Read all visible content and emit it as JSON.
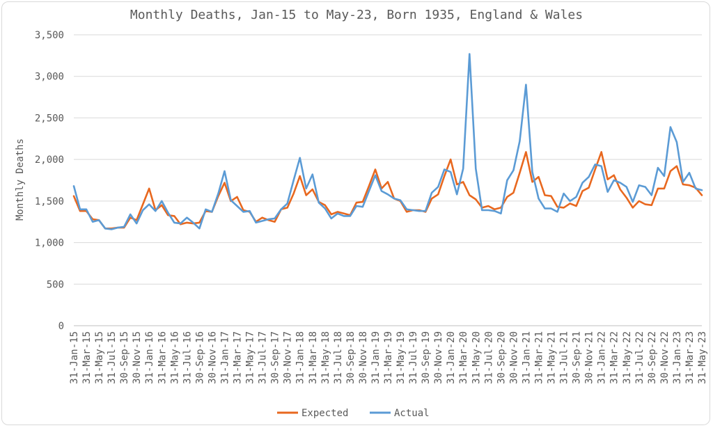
{
  "chart_data": {
    "type": "line",
    "title": "Monthly Deaths, Jan-15 to May-23, Born 1935, England & Wales",
    "ylabel": "Monthly Deaths",
    "xlabel": "",
    "ylim": [
      0,
      3500
    ],
    "yticks": [
      0,
      500,
      1000,
      1500,
      2000,
      2500,
      3000,
      3500
    ],
    "ytick_labels": [
      "0",
      "500",
      "1,000",
      "1,500",
      "2,000",
      "2,500",
      "3,000",
      "3,500"
    ],
    "grid": true,
    "legend": "bottom",
    "x_tick_labels": [
      "31-Jan-15",
      "31-Mar-15",
      "31-May-15",
      "31-Jul-15",
      "30-Sep-15",
      "30-Nov-15",
      "31-Jan-16",
      "31-Mar-16",
      "31-May-16",
      "31-Jul-16",
      "30-Sep-16",
      "30-Nov-16",
      "31-Jan-17",
      "31-Mar-17",
      "31-May-17",
      "31-Jul-17",
      "30-Sep-17",
      "30-Nov-17",
      "31-Jan-18",
      "31-Mar-18",
      "31-May-18",
      "31-Jul-18",
      "30-Sep-18",
      "30-Nov-18",
      "31-Jan-19",
      "31-Mar-19",
      "31-May-19",
      "31-Jul-19",
      "30-Sep-19",
      "30-Nov-19",
      "31-Jan-20",
      "31-Mar-20",
      "31-May-20",
      "31-Jul-20",
      "30-Sep-20",
      "30-Nov-20",
      "31-Jan-21",
      "31-Mar-21",
      "31-May-21",
      "31-Jul-21",
      "30-Sep-21",
      "30-Nov-21",
      "31-Jan-22",
      "31-Mar-22",
      "31-May-22",
      "31-Jul-22",
      "30-Sep-22",
      "30-Nov-22",
      "31-Jan-23",
      "31-Mar-23",
      "31-May-23"
    ],
    "series": [
      {
        "name": "Expected",
        "color": "#e8681f",
        "values": [
          1560,
          1380,
          1380,
          1280,
          1270,
          1170,
          1170,
          1180,
          1180,
          1300,
          1270,
          1460,
          1650,
          1390,
          1450,
          1330,
          1320,
          1220,
          1240,
          1230,
          1240,
          1380,
          1370,
          1560,
          1720,
          1500,
          1550,
          1390,
          1370,
          1250,
          1300,
          1270,
          1250,
          1400,
          1420,
          1590,
          1800,
          1570,
          1640,
          1490,
          1450,
          1340,
          1370,
          1350,
          1330,
          1480,
          1490,
          1680,
          1880,
          1650,
          1730,
          1530,
          1500,
          1370,
          1390,
          1390,
          1370,
          1530,
          1580,
          1800,
          2000,
          1700,
          1730,
          1570,
          1520,
          1420,
          1440,
          1400,
          1420,
          1550,
          1600,
          1840,
          2090,
          1730,
          1790,
          1570,
          1560,
          1430,
          1420,
          1470,
          1440,
          1620,
          1660,
          1880,
          2090,
          1760,
          1810,
          1640,
          1540,
          1420,
          1500,
          1460,
          1450,
          1650,
          1650,
          1860,
          1920,
          1700,
          1690,
          1660,
          1570
        ]
      },
      {
        "name": "Actual",
        "color": "#5b9bd5",
        "values": [
          1680,
          1400,
          1400,
          1250,
          1270,
          1170,
          1160,
          1180,
          1190,
          1340,
          1230,
          1390,
          1460,
          1380,
          1500,
          1360,
          1240,
          1230,
          1300,
          1240,
          1170,
          1400,
          1370,
          1590,
          1860,
          1510,
          1440,
          1370,
          1380,
          1240,
          1260,
          1280,
          1290,
          1400,
          1470,
          1750,
          2020,
          1650,
          1820,
          1480,
          1410,
          1290,
          1350,
          1320,
          1320,
          1440,
          1430,
          1620,
          1810,
          1620,
          1580,
          1530,
          1510,
          1400,
          1390,
          1380,
          1380,
          1600,
          1670,
          1880,
          1850,
          1580,
          1890,
          3270,
          1890,
          1390,
          1390,
          1380,
          1350,
          1750,
          1870,
          2220,
          2900,
          1850,
          1530,
          1410,
          1410,
          1370,
          1590,
          1500,
          1550,
          1720,
          1790,
          1940,
          1920,
          1610,
          1750,
          1720,
          1670,
          1490,
          1690,
          1670,
          1570,
          1900,
          1800,
          2390,
          2210,
          1730,
          1840,
          1650,
          1630
        ]
      }
    ]
  }
}
